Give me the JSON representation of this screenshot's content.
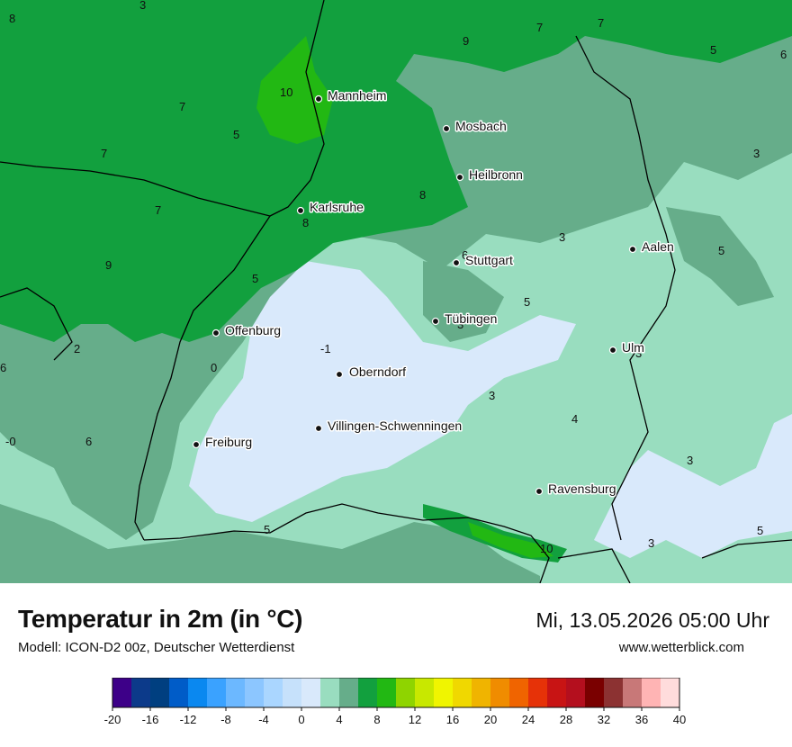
{
  "map": {
    "colors": {
      "c_neg1": "#d9e9fb",
      "c0": "#cfe3f7",
      "c2": "#99ddbf",
      "c4": "#66ad8a",
      "c6": "#12a03e",
      "c8": "#22b813"
    },
    "cities": [
      {
        "name": "Mannheim"
      },
      {
        "name": "Mosbach"
      },
      {
        "name": "Heilbronn"
      },
      {
        "name": "Karlsruhe"
      },
      {
        "name": "Stuttgart"
      },
      {
        "name": "Aalen"
      },
      {
        "name": "Tübingen"
      },
      {
        "name": "Offenburg"
      },
      {
        "name": "Oberndorf"
      },
      {
        "name": "Ulm"
      },
      {
        "name": "Villingen-Schwenningen"
      },
      {
        "name": "Freiburg"
      },
      {
        "name": "Ravensburg"
      }
    ],
    "isolines": [
      "3",
      "8",
      "9",
      "7",
      "7",
      "5",
      "6",
      "10",
      "7",
      "5",
      "7",
      "8",
      "7",
      "9",
      "8",
      "6",
      "3",
      "5",
      "3",
      "5",
      "5",
      "2",
      "-1",
      "3",
      "0",
      "6",
      "3",
      "4",
      "-0",
      "6",
      "2",
      "3",
      "3",
      "5",
      "10",
      "3",
      "5"
    ]
  },
  "footer": {
    "title": "Temperatur in 2m (in °C)",
    "subtitle": "Modell: ICON-D2 00z, Deutscher Wetterdienst",
    "datetime": "Mi, 13.05.2026 05:00 Uhr",
    "website": "www.wetterblick.com"
  },
  "legend": {
    "colors": [
      "#3d0088",
      "#0c3a8a",
      "#003f80",
      "#005cc8",
      "#0a88f0",
      "#3aa2ff",
      "#6cb8ff",
      "#8cc6ff",
      "#aad6ff",
      "#c6e1fb",
      "#d9e9fb",
      "#99ddbf",
      "#66ad8a",
      "#12a03e",
      "#22b813",
      "#8fd400",
      "#c8e800",
      "#f0f500",
      "#f0d800",
      "#f0b400",
      "#f08c00",
      "#f06400",
      "#e63208",
      "#c81414",
      "#b40f1e",
      "#7a0000",
      "#8c3232",
      "#c87878",
      "#ffb4b4",
      "#ffdcdc"
    ],
    "ticks": [
      "-20",
      "-16",
      "-12",
      "-8",
      "-4",
      "0",
      "4",
      "8",
      "12",
      "16",
      "20",
      "24",
      "28",
      "32",
      "36",
      "40"
    ]
  }
}
